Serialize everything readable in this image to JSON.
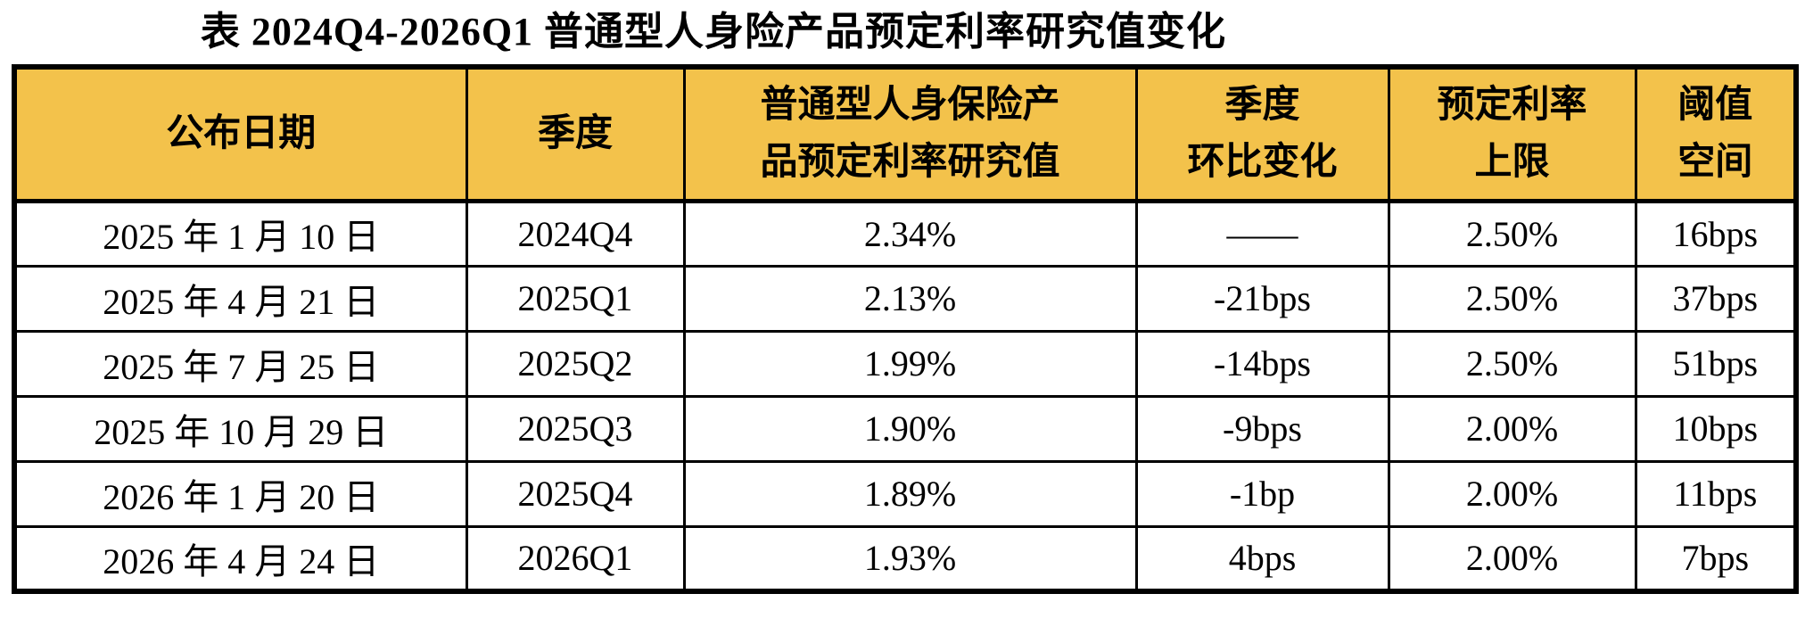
{
  "title": "表 2024Q4-2026Q1 普通型人身险产品预定利率研究值变化",
  "colors": {
    "header_bg": "#F3C24B",
    "border": "#000000",
    "text": "#000000",
    "page_bg": "#FFFFFF"
  },
  "table": {
    "header_lines": [
      [
        "公布日期"
      ],
      [
        "季度"
      ],
      [
        "普通型人身保险产",
        "品预定利率研究值"
      ],
      [
        "季度",
        "环比变化"
      ],
      [
        "预定利率",
        "上限"
      ],
      [
        "阈值",
        "空间"
      ]
    ],
    "rows": [
      [
        "2025 年 1 月 10 日",
        "2024Q4",
        "2.34%",
        "——",
        "2.50%",
        "16bps"
      ],
      [
        "2025 年 4 月 21 日",
        "2025Q1",
        "2.13%",
        "-21bps",
        "2.50%",
        "37bps"
      ],
      [
        "2025 年 7 月 25 日",
        "2025Q2",
        "1.99%",
        "-14bps",
        "2.50%",
        "51bps"
      ],
      [
        "2025 年 10 月 29 日",
        "2025Q3",
        "1.90%",
        "-9bps",
        "2.00%",
        "10bps"
      ],
      [
        "2026 年 1 月 20 日",
        "2025Q4",
        "1.89%",
        "-1bp",
        "2.00%",
        "11bps"
      ],
      [
        "2026 年 4 月 24 日",
        "2026Q1",
        "1.93%",
        "4bps",
        "2.00%",
        "7bps"
      ]
    ]
  }
}
